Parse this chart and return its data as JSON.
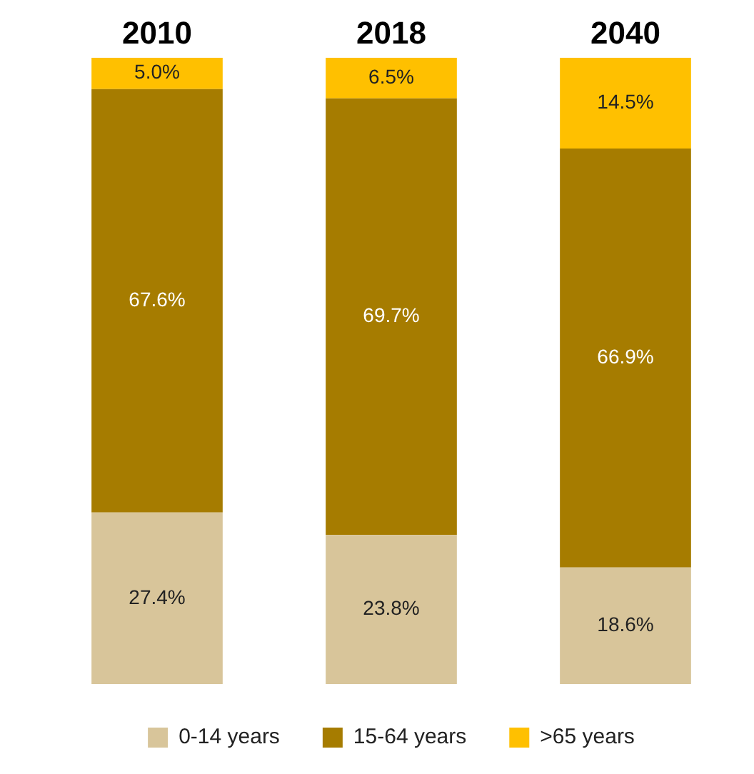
{
  "chart_data": {
    "type": "bar",
    "stacked": true,
    "categories": [
      "2010",
      "2018",
      "2040"
    ],
    "series": [
      {
        "name": "0-14 years",
        "color": "#d8c59a",
        "values": [
          27.4,
          23.8,
          18.6
        ],
        "value_labels": [
          "27.4%",
          "23.8%",
          "18.6%"
        ]
      },
      {
        "name": "15-64 years",
        "color": "#a67c00",
        "values": [
          67.6,
          69.7,
          66.9
        ],
        "value_labels": [
          "67.6%",
          "69.7%",
          "66.9%"
        ]
      },
      {
        "name": ">65 years",
        "color": "#ffc000",
        "values": [
          5.0,
          6.5,
          14.5
        ],
        "value_labels": [
          "5.0%",
          "6.5%",
          "14.5%"
        ]
      }
    ],
    "legend": "bottom",
    "grid": false
  }
}
